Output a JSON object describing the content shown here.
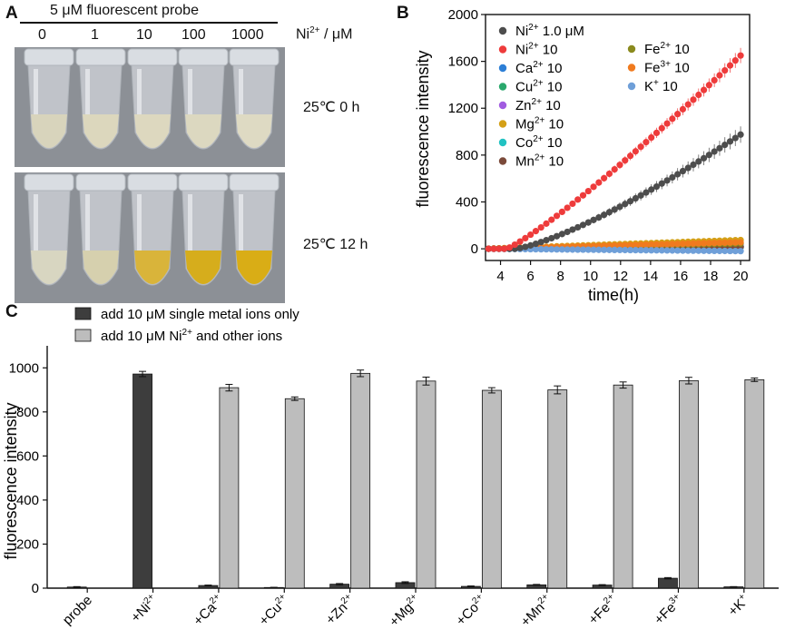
{
  "panel_a": {
    "label": "A",
    "probe_title": "5 μM fluorescent probe",
    "concentrations": [
      "0",
      "1",
      "10",
      "100",
      "1000"
    ],
    "unit_label_base": "Ni",
    "unit_label_sup": "2+",
    "unit_label_rest": " / μM",
    "row_labels": [
      "25℃  0 h",
      "25℃  12 h"
    ],
    "liquid_colors_0h": [
      "#d8d4bc",
      "#dcd7bd",
      "#ddd8bf",
      "#dcd8c0",
      "#dedac3"
    ],
    "liquid_colors_12h": [
      "#d8d6c1",
      "#d6d0ae",
      "#d9b43a",
      "#d6ad1c",
      "#d9ad16"
    ]
  },
  "chart_data": [
    {
      "panel": "B",
      "type": "scatter",
      "title": "",
      "xlabel": "time(h)",
      "ylabel": "fluorescence intensity",
      "xlim": [
        3,
        20.6
      ],
      "ylim": [
        -100,
        2000
      ],
      "xticks": [
        4,
        6,
        8,
        10,
        12,
        14,
        16,
        18,
        20
      ],
      "yticks": [
        0,
        400,
        800,
        1200,
        1600,
        2000
      ],
      "legend_position": "top-left",
      "series": [
        {
          "name": "Ni",
          "sup": "2+",
          "conc": "1.0 μM",
          "color": "#4d4d4d",
          "start": 5.0,
          "end": 975,
          "shape": 1.3,
          "err": 70
        },
        {
          "name": "Ni",
          "sup": "2+",
          "conc": "10",
          "color": "#ee3b3b",
          "start": 4.4,
          "end": 1650,
          "shape": 1.15,
          "err": 65
        },
        {
          "name": "Ca",
          "sup": "2+",
          "conc": "10",
          "color": "#2d7fd6",
          "start": 3.0,
          "end": 15,
          "shape": 1,
          "err": 8
        },
        {
          "name": "Cu",
          "sup": "2+",
          "conc": "10",
          "color": "#2aa86c",
          "start": 3.0,
          "end": 20,
          "shape": 1,
          "err": 8
        },
        {
          "name": "Zn",
          "sup": "2+",
          "conc": "10",
          "color": "#a15ce0",
          "start": 3.0,
          "end": 25,
          "shape": 1,
          "err": 8
        },
        {
          "name": "Mg",
          "sup": "2+",
          "conc": "10",
          "color": "#d4a017",
          "start": 3.0,
          "end": 75,
          "shape": 1,
          "err": 12
        },
        {
          "name": "Co",
          "sup": "2+",
          "conc": "10",
          "color": "#22c2c2",
          "start": 3.0,
          "end": 10,
          "shape": 1,
          "err": 8
        },
        {
          "name": "Mn",
          "sup": "2+",
          "conc": "10",
          "color": "#7b4a3a",
          "start": 3.0,
          "end": 15,
          "shape": 1,
          "err": 8
        },
        {
          "name": "Fe",
          "sup": "2+",
          "conc": "10",
          "color": "#8a8a1e",
          "start": 3.0,
          "end": 45,
          "shape": 1,
          "err": 10
        },
        {
          "name": "Fe",
          "sup": "3+",
          "conc": "10",
          "color": "#f07a1e",
          "start": 3.0,
          "end": 55,
          "shape": 1,
          "err": 10
        },
        {
          "name": "K",
          "sup": "+",
          "conc": "10",
          "color": "#6f9fd8",
          "start": 3.0,
          "end": -20,
          "shape": 1,
          "err": 8
        }
      ]
    },
    {
      "panel": "C",
      "type": "bar",
      "title": "",
      "xlabel": "",
      "ylabel": "fluorescence intensity",
      "ylim": [
        0,
        1100
      ],
      "yticks": [
        0,
        200,
        400,
        600,
        800,
        1000
      ],
      "legend_position": "top-left",
      "categories": [
        {
          "base": "probe",
          "sup": ""
        },
        {
          "base": "+Ni",
          "sup": "2+"
        },
        {
          "base": "+Ca",
          "sup": "2+"
        },
        {
          "base": "+Cu",
          "sup": "2+"
        },
        {
          "base": "+Zn",
          "sup": "2+"
        },
        {
          "base": "+Mg",
          "sup": "2+"
        },
        {
          "base": "+Co",
          "sup": "2+"
        },
        {
          "base": "+Mn",
          "sup": "2+"
        },
        {
          "base": "+Fe",
          "sup": "2+"
        },
        {
          "base": "+Fe",
          "sup": "3+"
        },
        {
          "base": "+K",
          "sup": "+"
        }
      ],
      "series": [
        {
          "name": "add 10 μM single metal ions only",
          "color": "#3d3d3d",
          "values": [
            5,
            972,
            12,
            3,
            18,
            25,
            8,
            15,
            14,
            45,
            6
          ],
          "errors": [
            2,
            12,
            2,
            1,
            3,
            4,
            2,
            2,
            2,
            3,
            1
          ]
        },
        {
          "name": "add 10 μM Ni2+ and other ions",
          "name_base": "add 10 μM Ni",
          "name_sup": "2+",
          "name_rest": " and other ions",
          "color": "#bdbdbd",
          "values": [
            null,
            null,
            910,
            860,
            975,
            940,
            898,
            900,
            922,
            942,
            946
          ],
          "errors": [
            null,
            null,
            15,
            8,
            15,
            18,
            12,
            18,
            14,
            15,
            8
          ]
        }
      ]
    }
  ]
}
